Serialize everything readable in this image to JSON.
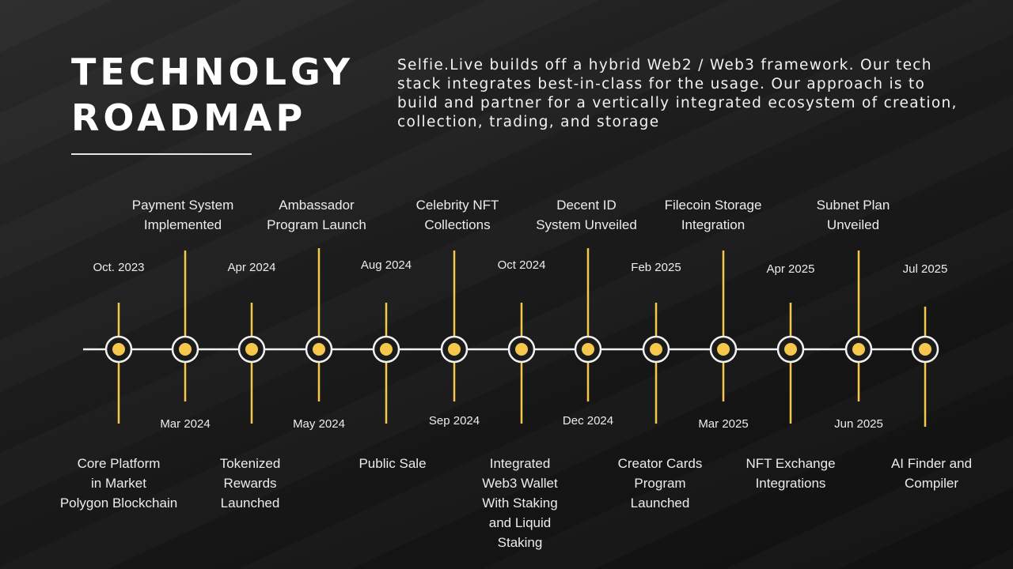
{
  "title": {
    "line1": "TECHNOLGY",
    "line2": "ROADMAP"
  },
  "intro": "Selfie.Live builds off a hybrid Web2 / Web3 framework. Our tech stack integrates best-in-class for the usage. Our approach is to build and partner for a vertically integrated ecosystem of creation, collection, trading, and storage",
  "colors": {
    "accent": "#f5c84c",
    "line": "#f1f1f1",
    "text": "#ececec"
  },
  "timeline": [
    {
      "date": "Oct. 2023",
      "milestone": [
        "Core Platform",
        "in Market",
        "Polygon Blockchain"
      ]
    },
    {
      "date": "Mar 2024",
      "milestone": [
        "Payment System",
        "Implemented"
      ]
    },
    {
      "date": "Apr 2024",
      "milestone": [
        "Tokenized",
        "Rewards",
        "Launched"
      ]
    },
    {
      "date": "May 2024",
      "milestone": [
        "Ambassador",
        "Program Launch"
      ]
    },
    {
      "date": "Aug 2024",
      "milestone": [
        "Public Sale"
      ]
    },
    {
      "date": "Sep 2024",
      "milestone": [
        "Celebrity NFT",
        "Collections"
      ]
    },
    {
      "date": "Oct 2024",
      "milestone": [
        "Integrated",
        "Web3 Wallet",
        "With Staking",
        "and Liquid",
        "Staking"
      ]
    },
    {
      "date": "Dec 2024",
      "milestone": [
        "Decent ID",
        "System Unveiled"
      ]
    },
    {
      "date": "Feb 2025",
      "milestone": [
        "Creator Cards",
        "Program",
        "Launched"
      ]
    },
    {
      "date": "Mar 2025",
      "milestone": [
        "Filecoin Storage",
        "Integration"
      ]
    },
    {
      "date": "Apr 2025",
      "milestone": [
        "NFT Exchange",
        "Integrations"
      ]
    },
    {
      "date": "Jun 2025",
      "milestone": [
        "Subnet Plan",
        "Unveiled"
      ]
    },
    {
      "date": "Jul 2025",
      "milestone": [
        "AI Finder and",
        "Compiler"
      ]
    }
  ]
}
